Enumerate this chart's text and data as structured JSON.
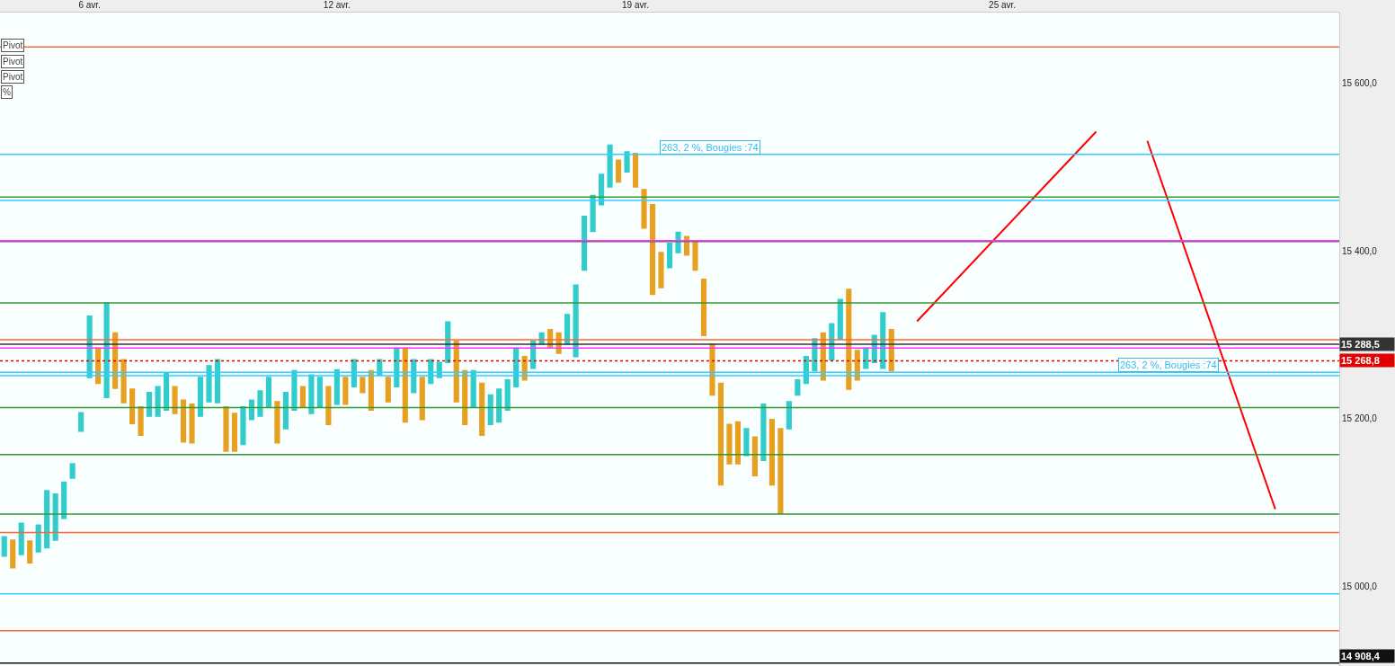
{
  "chart_data": {
    "type": "candlestick",
    "categories": [
      null,
      null,
      null,
      null,
      null,
      null,
      null,
      null,
      null,
      null,
      "6 avr.",
      null,
      null,
      null,
      null,
      null,
      null,
      null,
      null,
      null,
      null,
      null,
      null,
      null,
      null,
      null,
      null,
      null,
      null,
      null,
      null,
      null,
      null,
      null,
      null,
      null,
      null,
      null,
      null,
      "12 avr.",
      null,
      null,
      null,
      null,
      null,
      null,
      null,
      null,
      null,
      null,
      null,
      null,
      null,
      null,
      null,
      null,
      null,
      null,
      null,
      null,
      null,
      null,
      null,
      null,
      null,
      null,
      null,
      null,
      null,
      null,
      null,
      null,
      null,
      null,
      "19 avr.",
      null,
      null,
      null,
      null,
      null,
      null,
      null,
      null,
      null,
      null,
      null,
      null,
      null,
      null,
      null,
      null,
      null,
      null,
      null,
      null,
      null,
      null,
      null,
      null,
      null,
      null,
      null,
      null,
      null,
      null,
      null,
      null,
      null,
      null,
      null,
      null,
      null,
      null,
      null,
      null,
      null,
      null,
      "25 avr.",
      null,
      null,
      null,
      null,
      null,
      null,
      null,
      null,
      null,
      null,
      null,
      null,
      null,
      null,
      null,
      null,
      null,
      null,
      null,
      null,
      null,
      null,
      null,
      null,
      null,
      null,
      null,
      null,
      null,
      null,
      null,
      null,
      null,
      null,
      null,
      null,
      null,
      null,
      null
    ],
    "ylim": [
      14905,
      15684
    ],
    "yticks": [
      {
        "value": 15000,
        "label": "15 000,0"
      },
      {
        "value": 15200,
        "label": "15 200,0"
      },
      {
        "value": 15400,
        "label": "15 400,0"
      },
      {
        "value": 15600,
        "label": "15 600,0"
      }
    ],
    "grid": false,
    "series": [
      {
        "colors": [
          "#33cccc",
          "#e8a020",
          "#33cccc",
          "#e8a020",
          "#33cccc",
          "#33cccc",
          "#33cccc",
          "#33cccc",
          "#33cccc",
          "#33cccc",
          "#33cccc",
          "#e8a020",
          "#33cccc",
          "#e8a020",
          "#e8a020",
          "#e8a020",
          "#e8a020",
          "#33cccc",
          "#33cccc",
          "#33cccc",
          "#e8a020",
          "#e8a020",
          "#e8a020",
          "#33cccc",
          "#33cccc",
          "#33cccc",
          "#e8a020",
          "#e8a020",
          "#33cccc",
          "#33cccc",
          "#33cccc",
          "#33cccc",
          "#e8a020",
          "#33cccc",
          "#33cccc",
          "#e8a020",
          "#33cccc",
          "#33cccc",
          "#e8a020",
          "#33cccc",
          "#e8a020",
          "#33cccc",
          "#e8a020",
          "#e8a020",
          "#33cccc",
          "#e8a020",
          "#33cccc",
          "#e8a020",
          "#33cccc",
          "#e8a020",
          "#33cccc",
          "#33cccc",
          "#33cccc",
          "#e8a020",
          "#e8a020",
          "#33cccc",
          "#e8a020",
          "#33cccc",
          "#33cccc",
          "#33cccc",
          "#33cccc",
          "#e8a020",
          "#33cccc",
          "#33cccc",
          "#e8a020",
          "#e8a020",
          "#33cccc",
          "#33cccc",
          "#33cccc",
          "#33cccc",
          "#33cccc",
          "#33cccc",
          "#e8a020",
          "#33cccc",
          "#e8a020",
          "#e8a020",
          "#e8a020",
          "#e8a020",
          "#33cccc",
          "#33cccc",
          "#e8a020",
          "#e8a020",
          "#e8a020",
          "#e8a020",
          "#e8a020",
          "#e8a020",
          "#e8a020",
          "#33cccc",
          "#e8a020",
          "#33cccc",
          "#e8a020",
          "#e8a020",
          "#33cccc",
          "#33cccc",
          "#33cccc",
          "#33cccc",
          "#e8a020",
          "#33cccc",
          "#33cccc",
          "#e8a020",
          "#e8a020",
          "#33cccc",
          "#33cccc",
          "#33cccc",
          "#e8a020",
          null,
          null,
          null,
          null,
          null,
          null,
          null,
          null,
          null,
          null,
          null,
          null,
          null,
          null,
          null,
          null,
          null,
          null,
          null,
          null,
          null,
          null,
          null,
          null,
          null,
          null,
          null,
          null,
          null,
          null,
          null,
          null,
          null,
          null,
          null,
          null,
          null,
          null,
          null,
          null,
          null,
          null,
          null,
          null,
          null,
          null,
          null,
          null,
          null,
          null,
          null,
          null
        ],
        "ohlc": [
          [
            15036,
            15059,
            15036,
            15059
          ],
          [
            15055,
            15055,
            15022,
            15022
          ],
          [
            15038,
            15075,
            15038,
            15075
          ],
          [
            15054,
            15054,
            15028,
            15028
          ],
          [
            15041,
            15073,
            15041,
            15073
          ],
          [
            15046,
            15114,
            15046,
            15114
          ],
          [
            15055,
            15110,
            15055,
            15110
          ],
          [
            15081,
            15124,
            15081,
            15124
          ],
          [
            15129,
            15146,
            15129,
            15146
          ],
          [
            15185,
            15207,
            15185,
            15207
          ],
          [
            15249,
            15322,
            15249,
            15322
          ],
          [
            15284,
            15284,
            15242,
            15242
          ],
          [
            15225,
            15338,
            15225,
            15338
          ],
          [
            15302,
            15302,
            15236,
            15236
          ],
          [
            15270,
            15270,
            15219,
            15219
          ],
          [
            15235,
            15235,
            15194,
            15194
          ],
          [
            15214,
            15214,
            15180,
            15180
          ],
          [
            15203,
            15231,
            15203,
            15231
          ],
          [
            15203,
            15238,
            15203,
            15238
          ],
          [
            15210,
            15254,
            15210,
            15254
          ],
          [
            15238,
            15238,
            15206,
            15206
          ],
          [
            15222,
            15222,
            15172,
            15172
          ],
          [
            15217,
            15217,
            15171,
            15171
          ],
          [
            15203,
            15249,
            15203,
            15249
          ],
          [
            15220,
            15263,
            15220,
            15263
          ],
          [
            15219,
            15270,
            15219,
            15270
          ],
          [
            15214,
            15214,
            15161,
            15161
          ],
          [
            15206,
            15206,
            15161,
            15161
          ],
          [
            15169,
            15214,
            15169,
            15214
          ],
          [
            15199,
            15222,
            15199,
            15222
          ],
          [
            15203,
            15233,
            15203,
            15233
          ],
          [
            15214,
            15249,
            15214,
            15249
          ],
          [
            15220,
            15220,
            15171,
            15171
          ],
          [
            15188,
            15231,
            15188,
            15231
          ],
          [
            15210,
            15257,
            15210,
            15257
          ],
          [
            15238,
            15238,
            15214,
            15214
          ],
          [
            15206,
            15252,
            15206,
            15252
          ],
          [
            15214,
            15249,
            15214,
            15249
          ],
          [
            15238,
            15238,
            15193,
            15193
          ],
          [
            15217,
            15258,
            15217,
            15258
          ],
          [
            15249,
            15249,
            15217,
            15217
          ],
          [
            15238,
            15270,
            15238,
            15270
          ],
          [
            15249,
            15249,
            15231,
            15231
          ],
          [
            15257,
            15257,
            15210,
            15210
          ],
          [
            15252,
            15270,
            15252,
            15270
          ],
          [
            15249,
            15249,
            15220,
            15220
          ],
          [
            15238,
            15284,
            15238,
            15284
          ],
          [
            15284,
            15284,
            15196,
            15196
          ],
          [
            15231,
            15270,
            15231,
            15270
          ],
          [
            15249,
            15249,
            15199,
            15199
          ],
          [
            15242,
            15270,
            15242,
            15270
          ],
          [
            15249,
            15267,
            15249,
            15267
          ],
          [
            15267,
            15315,
            15267,
            15315
          ],
          [
            15292,
            15292,
            15220,
            15220
          ],
          [
            15257,
            15257,
            15193,
            15193
          ],
          [
            15214,
            15257,
            15214,
            15257
          ],
          [
            15242,
            15242,
            15180,
            15180
          ],
          [
            15193,
            15228,
            15193,
            15228
          ],
          [
            15196,
            15235,
            15196,
            15235
          ],
          [
            15210,
            15246,
            15210,
            15246
          ],
          [
            15238,
            15284,
            15238,
            15284
          ],
          [
            15274,
            15274,
            15246,
            15246
          ],
          [
            15260,
            15292,
            15260,
            15292
          ],
          [
            15289,
            15302,
            15289,
            15302
          ],
          [
            15306,
            15306,
            15284,
            15284
          ],
          [
            15302,
            15302,
            15278,
            15278
          ],
          [
            15289,
            15324,
            15289,
            15324
          ],
          [
            15274,
            15359,
            15274,
            15359
          ],
          [
            15377,
            15441,
            15377,
            15441
          ],
          [
            15423,
            15466,
            15423,
            15466
          ],
          [
            15455,
            15491,
            15455,
            15491
          ],
          [
            15476,
            15526,
            15476,
            15526
          ],
          [
            15508,
            15508,
            15482,
            15482
          ],
          [
            15494,
            15518,
            15494,
            15518
          ],
          [
            15516,
            15516,
            15476,
            15476
          ],
          [
            15473,
            15473,
            15427,
            15427
          ],
          [
            15455,
            15455,
            15348,
            15348
          ],
          [
            15398,
            15398,
            15356,
            15356
          ],
          [
            15380,
            15409,
            15380,
            15409
          ],
          [
            15398,
            15422,
            15398,
            15422
          ],
          [
            15417,
            15417,
            15395,
            15395
          ],
          [
            15412,
            15412,
            15377,
            15377
          ],
          [
            15366,
            15366,
            15299,
            15299
          ],
          [
            15289,
            15289,
            15228,
            15228
          ],
          [
            15242,
            15242,
            15121,
            15121
          ],
          [
            15193,
            15193,
            15146,
            15146
          ],
          [
            15196,
            15196,
            15146,
            15146
          ],
          [
            15156,
            15188,
            15156,
            15188
          ],
          [
            15178,
            15178,
            15132,
            15132
          ],
          [
            15150,
            15217,
            15150,
            15217
          ],
          [
            15199,
            15199,
            15121,
            15121
          ],
          [
            15188,
            15188,
            15087,
            15087
          ],
          [
            15188,
            15220,
            15188,
            15220
          ],
          [
            15228,
            15246,
            15228,
            15246
          ],
          [
            15242,
            15274,
            15242,
            15274
          ],
          [
            15257,
            15295,
            15257,
            15295
          ],
          [
            15302,
            15302,
            15246,
            15246
          ],
          [
            15270,
            15313,
            15270,
            15313
          ],
          [
            15295,
            15342,
            15295,
            15342
          ],
          [
            15354,
            15354,
            15235,
            15235
          ],
          [
            15281,
            15281,
            15246,
            15246
          ],
          [
            15260,
            15284,
            15260,
            15284
          ],
          [
            15267,
            15299,
            15267,
            15299
          ],
          [
            15260,
            15326,
            15260,
            15326
          ],
          [
            15306,
            15306,
            15257,
            15257
          ],
          null,
          null,
          null,
          null,
          null,
          null,
          null,
          null,
          null,
          null,
          null,
          null,
          null,
          null,
          null,
          null,
          null,
          null,
          null,
          null,
          null,
          null,
          null,
          null,
          null,
          null,
          null,
          null,
          null,
          null,
          null,
          null,
          null,
          null,
          null,
          null,
          null,
          null,
          null,
          null,
          null,
          null,
          null,
          null,
          null,
          null,
          null,
          null,
          null,
          null,
          null,
          null
        ]
      },
      {
        "type": "line",
        "color": "#ff0000",
        "values": [
          null,
          null,
          null,
          null,
          null,
          null,
          null,
          null,
          null,
          null,
          null,
          null,
          null,
          null,
          null,
          null,
          null,
          null,
          null,
          null,
          null,
          null,
          null,
          null,
          null,
          null,
          null,
          null,
          null,
          null,
          null,
          null,
          null,
          null,
          null,
          null,
          null,
          null,
          null,
          null,
          null,
          null,
          null,
          null,
          null,
          null,
          null,
          null,
          null,
          null,
          null,
          null,
          null,
          null,
          null,
          null,
          null,
          null,
          null,
          null,
          null,
          null,
          null,
          null,
          null,
          null,
          null,
          null,
          null,
          null,
          null,
          null,
          null,
          null,
          null,
          null,
          null,
          null,
          null,
          null,
          null,
          null,
          null,
          null,
          null,
          null,
          null,
          null,
          null,
          null,
          null,
          null,
          null,
          null,
          null,
          null,
          null,
          null,
          null,
          null,
          null,
          null,
          null,
          null,
          null,
          null,
          null,
          15316,
          null,
          null,
          null,
          null,
          null,
          null,
          null,
          null,
          null,
          null,
          null,
          null,
          null,
          null,
          null,
          null,
          null,
          null,
          null,
          null,
          15542,
          null,
          null,
          null,
          null,
          null,
          null,
          null,
          null,
          null,
          null,
          null,
          null,
          null,
          null,
          null,
          null,
          null,
          null,
          null,
          null,
          null,
          null,
          null,
          null,
          null,
          null,
          null,
          null
        ]
      },
      {
        "type": "line",
        "color": "#ff0000",
        "values": [
          null,
          null,
          null,
          null,
          null,
          null,
          null,
          null,
          null,
          null,
          null,
          null,
          null,
          null,
          null,
          null,
          null,
          null,
          null,
          null,
          null,
          null,
          null,
          null,
          null,
          null,
          null,
          null,
          null,
          null,
          null,
          null,
          null,
          null,
          null,
          null,
          null,
          null,
          null,
          null,
          null,
          null,
          null,
          null,
          null,
          null,
          null,
          null,
          null,
          null,
          null,
          null,
          null,
          null,
          null,
          null,
          null,
          null,
          null,
          null,
          null,
          null,
          null,
          null,
          null,
          null,
          null,
          null,
          null,
          null,
          null,
          null,
          null,
          null,
          null,
          null,
          null,
          null,
          null,
          null,
          null,
          null,
          null,
          null,
          null,
          null,
          null,
          null,
          null,
          null,
          null,
          null,
          null,
          null,
          null,
          null,
          null,
          null,
          null,
          null,
          null,
          null,
          null,
          null,
          null,
          null,
          null,
          null,
          null,
          null,
          null,
          null,
          null,
          null,
          null,
          null,
          null,
          null,
          null,
          null,
          null,
          null,
          null,
          null,
          null,
          null,
          null,
          null,
          null,
          null,
          null,
          null,
          null,
          null,
          15531,
          null,
          null,
          null,
          null,
          null,
          null,
          null,
          null,
          null,
          null,
          null,
          null,
          null,
          null,
          15092,
          null,
          null,
          null,
          null,
          null,
          null,
          null
        ]
      }
    ],
    "ref_lines": [
      {
        "axis": "y",
        "value": 15643,
        "color": "#ff6633"
      },
      {
        "axis": "y",
        "value": 15464,
        "color": "#339933"
      },
      {
        "axis": "y",
        "value": 15460,
        "color": "#33ccff"
      },
      {
        "axis": "y",
        "value": 15515,
        "color": "#33ccff"
      },
      {
        "axis": "y",
        "value": 15411,
        "color": "#666666"
      },
      {
        "axis": "y",
        "value": 15412,
        "color": "#ff33ff"
      },
      {
        "axis": "y",
        "value": 15338,
        "color": "#339933"
      },
      {
        "axis": "y",
        "value": 15294,
        "color": "#ff6633"
      },
      {
        "axis": "y",
        "value": 15288.5,
        "color": "#333333",
        "label": "15 288,5"
      },
      {
        "axis": "y",
        "value": 15284,
        "color": "#ff33ff"
      },
      {
        "axis": "y",
        "value": 15268.8,
        "color": "#e00000",
        "line_style": "dotted",
        "label": "15 268,8"
      },
      {
        "axis": "y",
        "value": 15255,
        "color": "#33ccff"
      },
      {
        "axis": "y",
        "value": 15251,
        "color": "#33ccff"
      },
      {
        "axis": "y",
        "value": 15213,
        "color": "#339933"
      },
      {
        "axis": "y",
        "value": 15157,
        "color": "#339933"
      },
      {
        "axis": "y",
        "value": 15086,
        "color": "#339933"
      },
      {
        "axis": "y",
        "value": 15064,
        "color": "#ff6633"
      },
      {
        "axis": "y",
        "value": 14991,
        "color": "#33ccff"
      },
      {
        "axis": "y",
        "value": 14947,
        "color": "#ff6633"
      },
      {
        "axis": "y",
        "value": 14908.4,
        "color": "#111111",
        "label": "14 908,4"
      }
    ],
    "annotations": [
      "Pivot",
      "Pivot",
      "Pivot",
      "%",
      {
        "text": "263, 2 %, Bougies :74",
        "y": 15515
      },
      {
        "text": "263, 2 %, Bougies :74",
        "y": 15255
      }
    ]
  }
}
